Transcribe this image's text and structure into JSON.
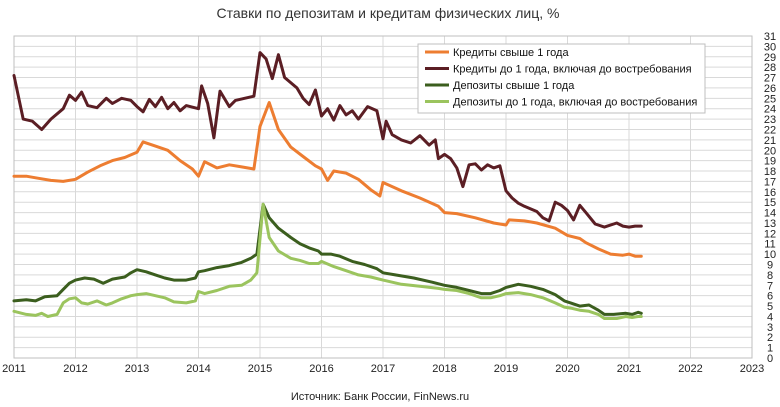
{
  "chart_data": {
    "type": "line",
    "title": "Ставки по депозитам и кредитам физических лиц, %",
    "source": "Источник: Банк России, FinNews.ru",
    "xlabel": "",
    "ylabel": "",
    "x_ticks": [
      "2011",
      "2012",
      "2013",
      "2014",
      "2015",
      "2016",
      "2017",
      "2018",
      "2019",
      "2020",
      "2021",
      "2022",
      "2023"
    ],
    "xlim": [
      2011,
      2023
    ],
    "ylim": [
      0,
      31
    ],
    "y_ticks": [
      0,
      1,
      2,
      3,
      4,
      5,
      6,
      7,
      8,
      9,
      10,
      11,
      12,
      13,
      14,
      15,
      16,
      17,
      18,
      19,
      20,
      21,
      22,
      23,
      24,
      25,
      26,
      27,
      28,
      29,
      30,
      31
    ],
    "grid": true,
    "legend_position": "top-right",
    "series": [
      {
        "name": "Кредиты свыше 1 года",
        "color": "#ED7D31",
        "points": [
          [
            2011.0,
            17.5
          ],
          [
            2011.2,
            17.5
          ],
          [
            2011.4,
            17.3
          ],
          [
            2011.6,
            17.1
          ],
          [
            2011.8,
            17.0
          ],
          [
            2012.0,
            17.2
          ],
          [
            2012.2,
            17.9
          ],
          [
            2012.4,
            18.5
          ],
          [
            2012.6,
            19.0
          ],
          [
            2012.8,
            19.3
          ],
          [
            2013.0,
            19.8
          ],
          [
            2013.1,
            20.8
          ],
          [
            2013.3,
            20.4
          ],
          [
            2013.5,
            20.0
          ],
          [
            2013.7,
            19.0
          ],
          [
            2013.9,
            18.2
          ],
          [
            2014.0,
            17.5
          ],
          [
            2014.1,
            18.9
          ],
          [
            2014.3,
            18.3
          ],
          [
            2014.5,
            18.6
          ],
          [
            2014.7,
            18.4
          ],
          [
            2014.9,
            18.2
          ],
          [
            2015.0,
            22.3
          ],
          [
            2015.15,
            24.6
          ],
          [
            2015.3,
            22.0
          ],
          [
            2015.5,
            20.3
          ],
          [
            2015.7,
            19.4
          ],
          [
            2015.9,
            18.5
          ],
          [
            2016.0,
            18.2
          ],
          [
            2016.1,
            17.1
          ],
          [
            2016.2,
            18.0
          ],
          [
            2016.4,
            17.8
          ],
          [
            2016.6,
            17.2
          ],
          [
            2016.8,
            16.2
          ],
          [
            2016.95,
            15.6
          ],
          [
            2017.0,
            16.9
          ],
          [
            2017.3,
            16.1
          ],
          [
            2017.6,
            15.4
          ],
          [
            2017.9,
            14.6
          ],
          [
            2018.0,
            14.0
          ],
          [
            2018.2,
            13.9
          ],
          [
            2018.5,
            13.5
          ],
          [
            2018.8,
            13.0
          ],
          [
            2019.0,
            12.8
          ],
          [
            2019.05,
            13.3
          ],
          [
            2019.3,
            13.2
          ],
          [
            2019.5,
            13.0
          ],
          [
            2019.8,
            12.5
          ],
          [
            2020.0,
            11.8
          ],
          [
            2020.2,
            11.5
          ],
          [
            2020.3,
            11.1
          ],
          [
            2020.5,
            10.5
          ],
          [
            2020.7,
            10.0
          ],
          [
            2020.9,
            9.9
          ],
          [
            2021.0,
            10.0
          ],
          [
            2021.1,
            9.8
          ],
          [
            2021.2,
            9.8
          ]
        ]
      },
      {
        "name": "Кредиты до 1 года, включая до востребования",
        "color": "#5B1E24",
        "points": [
          [
            2011.0,
            27.2
          ],
          [
            2011.15,
            23.0
          ],
          [
            2011.3,
            22.8
          ],
          [
            2011.45,
            22.0
          ],
          [
            2011.6,
            23.0
          ],
          [
            2011.8,
            24.0
          ],
          [
            2011.9,
            25.3
          ],
          [
            2012.0,
            24.8
          ],
          [
            2012.1,
            25.6
          ],
          [
            2012.2,
            24.3
          ],
          [
            2012.35,
            24.1
          ],
          [
            2012.5,
            25.0
          ],
          [
            2012.6,
            24.5
          ],
          [
            2012.75,
            25.0
          ],
          [
            2012.9,
            24.8
          ],
          [
            2013.0,
            24.2
          ],
          [
            2013.1,
            23.7
          ],
          [
            2013.2,
            24.9
          ],
          [
            2013.3,
            24.2
          ],
          [
            2013.4,
            25.1
          ],
          [
            2013.5,
            24.0
          ],
          [
            2013.6,
            24.6
          ],
          [
            2013.7,
            23.8
          ],
          [
            2013.8,
            24.3
          ],
          [
            2014.0,
            24.0
          ],
          [
            2014.05,
            26.2
          ],
          [
            2014.15,
            24.5
          ],
          [
            2014.25,
            21.2
          ],
          [
            2014.35,
            25.7
          ],
          [
            2014.5,
            24.2
          ],
          [
            2014.6,
            24.8
          ],
          [
            2014.75,
            25.0
          ],
          [
            2014.9,
            25.2
          ],
          [
            2015.0,
            29.4
          ],
          [
            2015.1,
            28.8
          ],
          [
            2015.2,
            26.9
          ],
          [
            2015.3,
            29.2
          ],
          [
            2015.4,
            27.0
          ],
          [
            2015.6,
            26.0
          ],
          [
            2015.7,
            25.0
          ],
          [
            2015.8,
            24.4
          ],
          [
            2015.9,
            25.8
          ],
          [
            2016.0,
            23.3
          ],
          [
            2016.1,
            24.0
          ],
          [
            2016.2,
            22.9
          ],
          [
            2016.3,
            24.3
          ],
          [
            2016.4,
            23.4
          ],
          [
            2016.5,
            23.8
          ],
          [
            2016.6,
            23.0
          ],
          [
            2016.75,
            24.2
          ],
          [
            2016.9,
            23.8
          ],
          [
            2017.0,
            21.1
          ],
          [
            2017.05,
            22.8
          ],
          [
            2017.15,
            21.5
          ],
          [
            2017.3,
            21.0
          ],
          [
            2017.45,
            20.7
          ],
          [
            2017.6,
            21.4
          ],
          [
            2017.75,
            20.5
          ],
          [
            2017.85,
            21.0
          ],
          [
            2017.9,
            19.2
          ],
          [
            2018.0,
            19.6
          ],
          [
            2018.1,
            19.2
          ],
          [
            2018.2,
            18.3
          ],
          [
            2018.3,
            16.5
          ],
          [
            2018.4,
            18.6
          ],
          [
            2018.5,
            18.7
          ],
          [
            2018.6,
            18.1
          ],
          [
            2018.7,
            18.6
          ],
          [
            2018.8,
            18.3
          ],
          [
            2018.9,
            18.5
          ],
          [
            2019.0,
            16.1
          ],
          [
            2019.1,
            15.4
          ],
          [
            2019.2,
            14.9
          ],
          [
            2019.3,
            14.6
          ],
          [
            2019.5,
            14.1
          ],
          [
            2019.6,
            13.5
          ],
          [
            2019.7,
            13.2
          ],
          [
            2019.8,
            15.0
          ],
          [
            2019.9,
            14.7
          ],
          [
            2020.0,
            14.2
          ],
          [
            2020.1,
            13.3
          ],
          [
            2020.2,
            14.7
          ],
          [
            2020.3,
            14.0
          ],
          [
            2020.45,
            12.9
          ],
          [
            2020.6,
            12.6
          ],
          [
            2020.8,
            13.0
          ],
          [
            2020.9,
            12.7
          ],
          [
            2021.0,
            12.6
          ],
          [
            2021.1,
            12.7
          ],
          [
            2021.2,
            12.7
          ]
        ]
      },
      {
        "name": "Депозиты свыше 1 года",
        "color": "#3B5E1E",
        "points": [
          [
            2011.0,
            5.5
          ],
          [
            2011.2,
            5.6
          ],
          [
            2011.35,
            5.5
          ],
          [
            2011.5,
            5.9
          ],
          [
            2011.7,
            6.0
          ],
          [
            2011.8,
            6.6
          ],
          [
            2011.9,
            7.2
          ],
          [
            2012.0,
            7.5
          ],
          [
            2012.15,
            7.7
          ],
          [
            2012.3,
            7.6
          ],
          [
            2012.45,
            7.2
          ],
          [
            2012.6,
            7.6
          ],
          [
            2012.8,
            7.8
          ],
          [
            2012.9,
            8.2
          ],
          [
            2013.0,
            8.5
          ],
          [
            2013.15,
            8.3
          ],
          [
            2013.3,
            8.0
          ],
          [
            2013.45,
            7.7
          ],
          [
            2013.6,
            7.5
          ],
          [
            2013.8,
            7.5
          ],
          [
            2013.95,
            7.7
          ],
          [
            2014.0,
            8.3
          ],
          [
            2014.1,
            8.4
          ],
          [
            2014.3,
            8.7
          ],
          [
            2014.5,
            8.9
          ],
          [
            2014.7,
            9.2
          ],
          [
            2014.85,
            9.6
          ],
          [
            2014.95,
            10.0
          ],
          [
            2015.05,
            14.8
          ],
          [
            2015.15,
            13.5
          ],
          [
            2015.3,
            12.5
          ],
          [
            2015.5,
            11.6
          ],
          [
            2015.65,
            11.0
          ],
          [
            2015.8,
            10.6
          ],
          [
            2015.95,
            10.3
          ],
          [
            2016.0,
            10.0
          ],
          [
            2016.15,
            10.0
          ],
          [
            2016.3,
            9.8
          ],
          [
            2016.5,
            9.3
          ],
          [
            2016.7,
            9.0
          ],
          [
            2016.9,
            8.6
          ],
          [
            2017.0,
            8.2
          ],
          [
            2017.2,
            8.0
          ],
          [
            2017.5,
            7.7
          ],
          [
            2017.8,
            7.3
          ],
          [
            2018.0,
            7.0
          ],
          [
            2018.2,
            6.8
          ],
          [
            2018.4,
            6.5
          ],
          [
            2018.6,
            6.2
          ],
          [
            2018.75,
            6.2
          ],
          [
            2018.9,
            6.5
          ],
          [
            2019.0,
            6.8
          ],
          [
            2019.2,
            7.1
          ],
          [
            2019.4,
            6.9
          ],
          [
            2019.6,
            6.6
          ],
          [
            2019.8,
            6.1
          ],
          [
            2019.95,
            5.5
          ],
          [
            2020.05,
            5.3
          ],
          [
            2020.2,
            5.0
          ],
          [
            2020.35,
            5.1
          ],
          [
            2020.5,
            4.6
          ],
          [
            2020.6,
            4.2
          ],
          [
            2020.75,
            4.2
          ],
          [
            2020.95,
            4.3
          ],
          [
            2021.05,
            4.2
          ],
          [
            2021.15,
            4.4
          ],
          [
            2021.2,
            4.3
          ]
        ]
      },
      {
        "name": "Депозиты до 1 года, включая до востребования",
        "color": "#9BC45E",
        "points": [
          [
            2011.0,
            4.5
          ],
          [
            2011.2,
            4.2
          ],
          [
            2011.35,
            4.1
          ],
          [
            2011.45,
            4.3
          ],
          [
            2011.55,
            4.0
          ],
          [
            2011.7,
            4.2
          ],
          [
            2011.8,
            5.3
          ],
          [
            2011.9,
            5.7
          ],
          [
            2012.0,
            5.8
          ],
          [
            2012.1,
            5.3
          ],
          [
            2012.2,
            5.2
          ],
          [
            2012.35,
            5.5
          ],
          [
            2012.5,
            5.1
          ],
          [
            2012.6,
            5.3
          ],
          [
            2012.75,
            5.7
          ],
          [
            2012.9,
            6.0
          ],
          [
            2013.0,
            6.1
          ],
          [
            2013.15,
            6.2
          ],
          [
            2013.3,
            6.0
          ],
          [
            2013.45,
            5.8
          ],
          [
            2013.6,
            5.4
          ],
          [
            2013.8,
            5.3
          ],
          [
            2013.95,
            5.5
          ],
          [
            2014.0,
            6.4
          ],
          [
            2014.1,
            6.2
          ],
          [
            2014.3,
            6.5
          ],
          [
            2014.5,
            6.9
          ],
          [
            2014.7,
            7.0
          ],
          [
            2014.85,
            7.5
          ],
          [
            2014.95,
            8.2
          ],
          [
            2015.05,
            14.8
          ],
          [
            2015.15,
            11.6
          ],
          [
            2015.3,
            10.3
          ],
          [
            2015.5,
            9.6
          ],
          [
            2015.65,
            9.4
          ],
          [
            2015.8,
            9.1
          ],
          [
            2015.95,
            9.1
          ],
          [
            2016.0,
            9.3
          ],
          [
            2016.2,
            8.8
          ],
          [
            2016.4,
            8.4
          ],
          [
            2016.6,
            8.0
          ],
          [
            2016.8,
            7.8
          ],
          [
            2017.0,
            7.5
          ],
          [
            2017.3,
            7.1
          ],
          [
            2017.6,
            6.9
          ],
          [
            2017.9,
            6.7
          ],
          [
            2018.0,
            6.6
          ],
          [
            2018.2,
            6.5
          ],
          [
            2018.4,
            6.2
          ],
          [
            2018.6,
            5.8
          ],
          [
            2018.75,
            5.8
          ],
          [
            2018.9,
            6.0
          ],
          [
            2019.0,
            6.2
          ],
          [
            2019.2,
            6.3
          ],
          [
            2019.4,
            6.1
          ],
          [
            2019.6,
            5.8
          ],
          [
            2019.8,
            5.3
          ],
          [
            2019.95,
            4.9
          ],
          [
            2020.05,
            4.8
          ],
          [
            2020.2,
            4.6
          ],
          [
            2020.35,
            4.5
          ],
          [
            2020.5,
            4.2
          ],
          [
            2020.6,
            3.8
          ],
          [
            2020.8,
            3.8
          ],
          [
            2020.95,
            4.0
          ],
          [
            2021.05,
            3.9
          ],
          [
            2021.15,
            4.0
          ],
          [
            2021.2,
            4.0
          ]
        ]
      }
    ]
  }
}
